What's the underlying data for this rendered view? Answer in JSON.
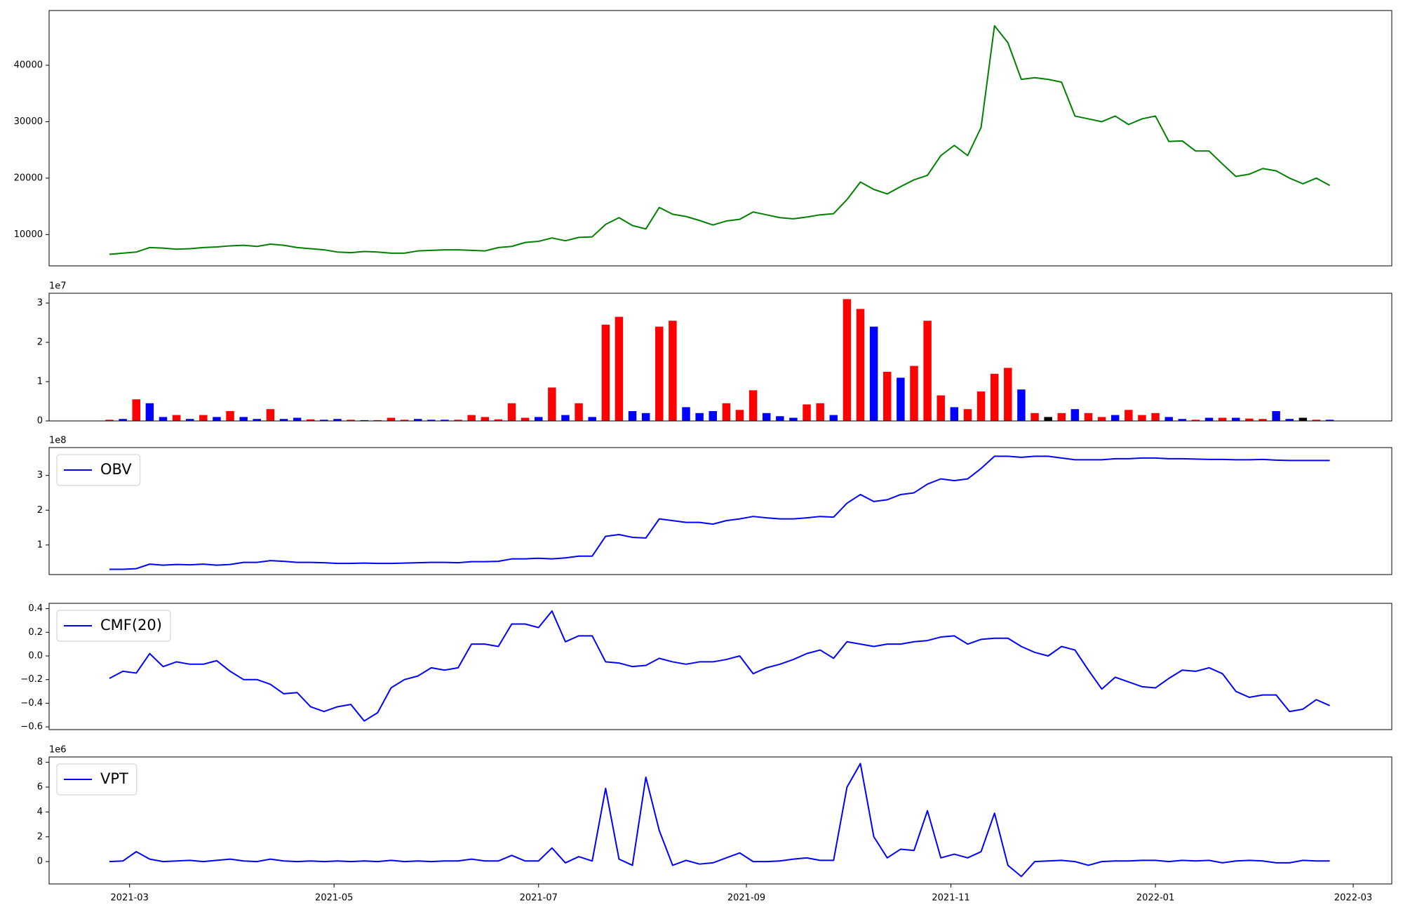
{
  "chart_data": [
    {
      "type": "line",
      "color": "green",
      "x": [
        53,
        57,
        61,
        65,
        69,
        73,
        77,
        81,
        85,
        89,
        93,
        97,
        101,
        105,
        109,
        113,
        117,
        121,
        125,
        129,
        133,
        137,
        141,
        145,
        149,
        153,
        157,
        161,
        165,
        169,
        173,
        177,
        181,
        185,
        189,
        193,
        197,
        201,
        205,
        209,
        213,
        217,
        221,
        225,
        229,
        233,
        237,
        241,
        245,
        249,
        253,
        257,
        261,
        265,
        269,
        273,
        277,
        281,
        285,
        289,
        293,
        297,
        301,
        305,
        309,
        313,
        317,
        321,
        325,
        329,
        333,
        337,
        341,
        345,
        349,
        353,
        357,
        361,
        365,
        369,
        373,
        377,
        381,
        385,
        389,
        393,
        397,
        401,
        405,
        409,
        413,
        417
      ],
      "values": [
        6500,
        6700,
        6900,
        7700,
        7600,
        7400,
        7500,
        7700,
        7800,
        8000,
        8100,
        7900,
        8300,
        8100,
        7700,
        7500,
        7300,
        6900,
        6800,
        7000,
        6900,
        6700,
        6700,
        7100,
        7200,
        7300,
        7300,
        7200,
        7100,
        7700,
        7900,
        8600,
        8800,
        9400,
        8900,
        9500,
        9600,
        11800,
        13000,
        11600,
        11000,
        14800,
        13600,
        13200,
        12500,
        11700,
        12400,
        12700,
        14000,
        13500,
        13000,
        12800,
        13100,
        13500,
        13700,
        16200,
        19300,
        18000,
        17200,
        18500,
        19700,
        20500,
        24000,
        25800,
        24000,
        29000,
        47000,
        44000,
        37500,
        37800,
        37500,
        37000,
        31000,
        30500,
        30000,
        31000,
        29500,
        30500,
        31000,
        26500,
        26600,
        24800,
        24800,
        22500,
        20300,
        20700,
        21700,
        21300,
        20000,
        19000,
        20000,
        18700
      ],
      "xlim": [
        35,
        435.5
      ],
      "ylim": [
        4450,
        49700
      ],
      "yticks": [
        10000,
        20000,
        30000,
        40000
      ]
    },
    {
      "type": "bar",
      "y_offset_label": "1e7",
      "x": [
        53,
        57,
        61,
        65,
        69,
        73,
        77,
        81,
        85,
        89,
        93,
        97,
        101,
        105,
        109,
        113,
        117,
        121,
        125,
        129,
        133,
        137,
        141,
        145,
        149,
        153,
        157,
        161,
        165,
        169,
        173,
        177,
        181,
        185,
        189,
        193,
        197,
        201,
        205,
        209,
        213,
        217,
        221,
        225,
        229,
        233,
        237,
        241,
        245,
        249,
        253,
        257,
        261,
        265,
        269,
        273,
        277,
        281,
        285,
        289,
        293,
        297,
        301,
        305,
        309,
        313,
        317,
        321,
        325,
        329,
        333,
        337,
        341,
        345,
        349,
        353,
        357,
        361,
        365,
        369,
        373,
        377,
        381,
        385,
        389,
        393,
        397,
        401,
        405,
        409,
        413,
        417
      ],
      "values": [
        0.03,
        0.05,
        0.55,
        0.45,
        0.1,
        0.15,
        0.05,
        0.15,
        0.1,
        0.25,
        0.1,
        0.05,
        0.3,
        0.05,
        0.08,
        0.04,
        0.03,
        0.05,
        0.03,
        0.02,
        0.02,
        0.08,
        0.03,
        0.05,
        0.03,
        0.03,
        0.03,
        0.15,
        0.1,
        0.04,
        0.45,
        0.08,
        0.1,
        0.85,
        0.15,
        0.45,
        0.1,
        2.45,
        2.65,
        0.25,
        0.2,
        2.4,
        2.55,
        0.35,
        0.2,
        0.25,
        0.45,
        0.28,
        0.78,
        0.2,
        0.12,
        0.08,
        0.42,
        0.45,
        0.15,
        3.1,
        2.85,
        2.4,
        1.25,
        1.1,
        1.4,
        2.55,
        0.65,
        0.35,
        0.3,
        0.75,
        1.2,
        1.35,
        0.8,
        0.2,
        0.1,
        0.2,
        0.3,
        0.2,
        0.1,
        0.15,
        0.28,
        0.15,
        0.2,
        0.1,
        0.05,
        0.03,
        0.08,
        0.08,
        0.08,
        0.06,
        0.05,
        0.25,
        0.05,
        0.08,
        0.03,
        0.03
      ],
      "colors": [
        "red",
        "blue",
        "red",
        "blue",
        "blue",
        "red",
        "blue",
        "red",
        "blue",
        "red",
        "blue",
        "blue",
        "red",
        "blue",
        "blue",
        "red",
        "blue",
        "blue",
        "red",
        "blue",
        "red",
        "red",
        "red",
        "blue",
        "blue",
        "blue",
        "red",
        "red",
        "red",
        "red",
        "red",
        "red",
        "blue",
        "red",
        "blue",
        "red",
        "blue",
        "red",
        "red",
        "blue",
        "blue",
        "red",
        "red",
        "blue",
        "blue",
        "blue",
        "red",
        "red",
        "red",
        "blue",
        "blue",
        "blue",
        "red",
        "red",
        "blue",
        "red",
        "red",
        "blue",
        "red",
        "blue",
        "red",
        "red",
        "red",
        "blue",
        "red",
        "red",
        "red",
        "red",
        "blue",
        "red",
        "black",
        "red",
        "blue",
        "red",
        "red",
        "blue",
        "red",
        "red",
        "red",
        "blue",
        "blue",
        "red",
        "blue",
        "red",
        "blue",
        "red",
        "red",
        "blue",
        "blue",
        "black",
        "red",
        "blue"
      ],
      "xlim": [
        35,
        435.5
      ],
      "ylim": [
        0,
        3.25
      ],
      "yticks": [
        0,
        1,
        2,
        3
      ]
    },
    {
      "type": "line",
      "y_offset_label": "1e8",
      "legend": "upper left",
      "x": [
        53,
        57,
        61,
        65,
        69,
        73,
        77,
        81,
        85,
        89,
        93,
        97,
        101,
        105,
        109,
        113,
        117,
        121,
        125,
        129,
        133,
        137,
        141,
        145,
        149,
        153,
        157,
        161,
        165,
        169,
        173,
        177,
        181,
        185,
        189,
        193,
        197,
        201,
        205,
        209,
        213,
        217,
        221,
        225,
        229,
        233,
        237,
        241,
        245,
        249,
        253,
        257,
        261,
        265,
        269,
        273,
        277,
        281,
        285,
        289,
        293,
        297,
        301,
        305,
        309,
        313,
        317,
        321,
        325,
        329,
        333,
        337,
        341,
        345,
        349,
        353,
        357,
        361,
        365,
        369,
        373,
        377,
        381,
        385,
        389,
        393,
        397,
        401,
        405,
        409,
        413,
        417
      ],
      "series": [
        {
          "name": "OBV",
          "color": "blue",
          "values": [
            0.3,
            0.3,
            0.32,
            0.45,
            0.42,
            0.44,
            0.43,
            0.45,
            0.42,
            0.44,
            0.5,
            0.5,
            0.55,
            0.53,
            0.5,
            0.5,
            0.49,
            0.47,
            0.47,
            0.48,
            0.47,
            0.47,
            0.48,
            0.49,
            0.5,
            0.5,
            0.49,
            0.52,
            0.52,
            0.53,
            0.6,
            0.6,
            0.62,
            0.6,
            0.63,
            0.68,
            0.68,
            1.25,
            1.3,
            1.22,
            1.2,
            1.75,
            1.7,
            1.65,
            1.65,
            1.6,
            1.7,
            1.75,
            1.82,
            1.78,
            1.75,
            1.75,
            1.78,
            1.82,
            1.8,
            2.2,
            2.45,
            2.25,
            2.3,
            2.45,
            2.5,
            2.75,
            2.9,
            2.85,
            2.9,
            3.2,
            3.55,
            3.55,
            3.52,
            3.55,
            3.55,
            3.5,
            3.45,
            3.45,
            3.45,
            3.48,
            3.48,
            3.5,
            3.5,
            3.48,
            3.48,
            3.47,
            3.46,
            3.46,
            3.45,
            3.45,
            3.46,
            3.44,
            3.43,
            3.43,
            3.43,
            3.43
          ]
        }
      ],
      "xlim": [
        35,
        435.5
      ],
      "ylim": [
        0.15,
        3.8
      ],
      "yticks": [
        1,
        2,
        3
      ]
    },
    {
      "type": "line",
      "legend": "upper left",
      "x": [
        53,
        57,
        61,
        65,
        69,
        73,
        77,
        81,
        85,
        89,
        93,
        97,
        101,
        105,
        109,
        113,
        117,
        121,
        125,
        129,
        133,
        137,
        141,
        145,
        149,
        153,
        157,
        161,
        165,
        169,
        173,
        177,
        181,
        185,
        189,
        193,
        197,
        201,
        205,
        209,
        213,
        217,
        221,
        225,
        229,
        233,
        237,
        241,
        245,
        249,
        253,
        257,
        261,
        265,
        269,
        273,
        277,
        281,
        285,
        289,
        293,
        297,
        301,
        305,
        309,
        313,
        317,
        321,
        325,
        329,
        333,
        337,
        341,
        345,
        349,
        353,
        357,
        361,
        365,
        369,
        373,
        377,
        381,
        385,
        389,
        393,
        397,
        401,
        405,
        409,
        413,
        417
      ],
      "series": [
        {
          "name": "CMF(20)",
          "color": "blue",
          "values": [
            -0.19,
            -0.13,
            -0.145,
            0.02,
            -0.09,
            -0.05,
            -0.07,
            -0.07,
            -0.04,
            -0.13,
            -0.2,
            -0.2,
            -0.24,
            -0.32,
            -0.31,
            -0.43,
            -0.47,
            -0.43,
            -0.41,
            -0.55,
            -0.48,
            -0.27,
            -0.2,
            -0.17,
            -0.1,
            -0.12,
            -0.1,
            0.1,
            0.1,
            0.08,
            0.27,
            0.27,
            0.24,
            0.38,
            0.12,
            0.17,
            0.17,
            -0.05,
            -0.06,
            -0.09,
            -0.08,
            -0.02,
            -0.05,
            -0.07,
            -0.05,
            -0.05,
            -0.03,
            0,
            -0.15,
            -0.1,
            -0.07,
            -0.03,
            0.02,
            0.05,
            -0.02,
            0.12,
            0.1,
            0.08,
            0.1,
            0.1,
            0.12,
            0.13,
            0.16,
            0.17,
            0.1,
            0.14,
            0.15,
            0.15,
            0.08,
            0.03,
            0,
            0.08,
            0.05,
            -0.12,
            -0.28,
            -0.18,
            -0.22,
            -0.26,
            -0.27,
            -0.19,
            -0.12,
            -0.13,
            -0.1,
            -0.15,
            -0.3,
            -0.35,
            -0.33,
            -0.33,
            -0.47,
            -0.45,
            -0.37,
            -0.42
          ]
        }
      ],
      "xlim": [
        35,
        435.5
      ],
      "ylim": [
        -0.623,
        0.445
      ],
      "yticks": [
        0.4,
        0.2,
        {
          "value": 0,
          "label": "0.0"
        },
        {
          "value": -0.2,
          "label": "−0.2"
        },
        {
          "value": -0.4,
          "label": "−0.4"
        },
        {
          "value": -0.6,
          "label": "−0.6"
        }
      ]
    },
    {
      "type": "line",
      "y_offset_label": "1e6",
      "legend": "upper left",
      "x": [
        53,
        57,
        61,
        65,
        69,
        73,
        77,
        81,
        85,
        89,
        93,
        97,
        101,
        105,
        109,
        113,
        117,
        121,
        125,
        129,
        133,
        137,
        141,
        145,
        149,
        153,
        157,
        161,
        165,
        169,
        173,
        177,
        181,
        185,
        189,
        193,
        197,
        201,
        205,
        209,
        213,
        217,
        221,
        225,
        229,
        233,
        237,
        241,
        245,
        249,
        253,
        257,
        261,
        265,
        269,
        273,
        277,
        281,
        285,
        289,
        293,
        297,
        301,
        305,
        309,
        313,
        317,
        321,
        325,
        329,
        333,
        337,
        341,
        345,
        349,
        353,
        357,
        361,
        365,
        369,
        373,
        377,
        381,
        385,
        389,
        393,
        397,
        401,
        405,
        409,
        413,
        417
      ],
      "series": [
        {
          "name": "VPT",
          "color": "blue",
          "values": [
            0,
            0.05,
            0.8,
            0.2,
            0,
            0.05,
            0.1,
            0,
            0.1,
            0.2,
            0.05,
            0,
            0.2,
            0.05,
            0,
            0.05,
            0,
            0.05,
            0,
            0.05,
            0,
            0.1,
            0,
            0.05,
            0,
            0.05,
            0.05,
            0.2,
            0.05,
            0.05,
            0.5,
            0.05,
            0.05,
            1.1,
            -0.1,
            0.4,
            0.05,
            5.9,
            0.2,
            -0.3,
            6.8,
            2.5,
            -0.3,
            0.1,
            -0.2,
            -0.1,
            0.3,
            0.7,
            0,
            0,
            0.05,
            0.2,
            0.3,
            0.1,
            0.1,
            6,
            7.9,
            2,
            0.3,
            1,
            0.9,
            4.1,
            0.3,
            0.6,
            0.3,
            0.8,
            3.9,
            -0.3,
            -1.2,
            0,
            0.05,
            0.1,
            0,
            -0.3,
            0,
            0.05,
            0.05,
            0.1,
            0.1,
            0,
            0.1,
            0.05,
            0.1,
            -0.1,
            0.05,
            0.1,
            0.05,
            -0.1,
            -0.1,
            0.1,
            0.05,
            0.05
          ]
        }
      ],
      "xlim": [
        35,
        435.5
      ],
      "ylim": [
        -1.8,
        8.43
      ],
      "yticks": [
        0,
        2,
        4,
        6,
        8
      ],
      "xticks": [
        {
          "value": 59,
          "label": "2021-03"
        },
        {
          "value": 120,
          "label": "2021-05"
        },
        {
          "value": 181,
          "label": "2021-07"
        },
        {
          "value": 243,
          "label": "2021-09"
        },
        {
          "value": 304,
          "label": "2021-11"
        },
        {
          "value": 365,
          "label": "2022-01"
        },
        {
          "value": 424,
          "label": "2022-03"
        }
      ]
    }
  ]
}
